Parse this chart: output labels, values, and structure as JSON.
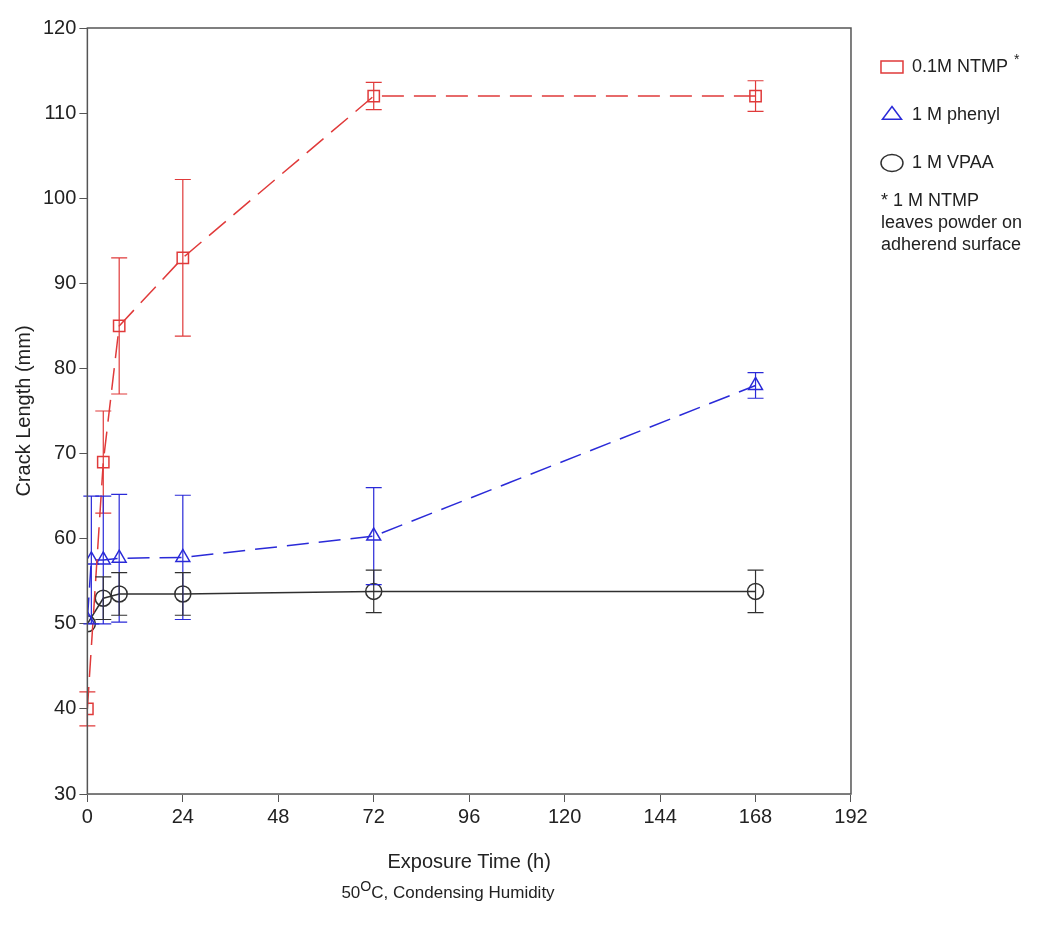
{
  "chart_data": {
    "type": "line",
    "xlabel": "Exposure Time (h)",
    "ylabel": "Crack Length (mm)",
    "xlim": [
      0,
      192
    ],
    "xticks": [
      0,
      24,
      48,
      72,
      96,
      120,
      144,
      168,
      192
    ],
    "ylim": [
      30,
      120
    ],
    "yticks": [
      30,
      40,
      50,
      60,
      70,
      80,
      90,
      100,
      110,
      120
    ],
    "grid": false,
    "legend": "right",
    "series": [
      {
        "name": "0.1M NTMP",
        "color": "#e03a3a",
        "marker": "square",
        "line_style": "dashed",
        "x": [
          0,
          4,
          8,
          24,
          72,
          168
        ],
        "values": [
          40,
          69,
          85,
          93,
          112,
          112
        ],
        "errors": [
          2,
          6,
          8,
          9.2,
          1.6,
          1.8
        ]
      },
      {
        "name": "1 M phenyl",
        "color": "#2a2ad8",
        "marker": "triangle",
        "line_style": "dashed",
        "x": [
          0,
          1,
          4,
          8,
          24,
          72,
          168
        ],
        "values": [
          50.5,
          57.5,
          57.5,
          57.7,
          57.8,
          60.3,
          78
        ],
        "errors": [
          null,
          7.5,
          7.5,
          7.5,
          7.3,
          5.7,
          1.5
        ]
      },
      {
        "name": "1 M VPAA",
        "color": "#303030",
        "marker": "circle",
        "line_style": "solid",
        "x": [
          0,
          4,
          8,
          24,
          72,
          168
        ],
        "values": [
          50,
          53,
          53.5,
          53.5,
          53.8,
          53.8
        ],
        "errors": [
          null,
          2.5,
          2.5,
          2.5,
          2.5,
          2.5
        ]
      }
    ],
    "annotations": [
      "*",
      "* 1 M NTMP leaves powder on adherend surface",
      "50$^{O}$C, Condensing Humidity"
    ]
  }
}
